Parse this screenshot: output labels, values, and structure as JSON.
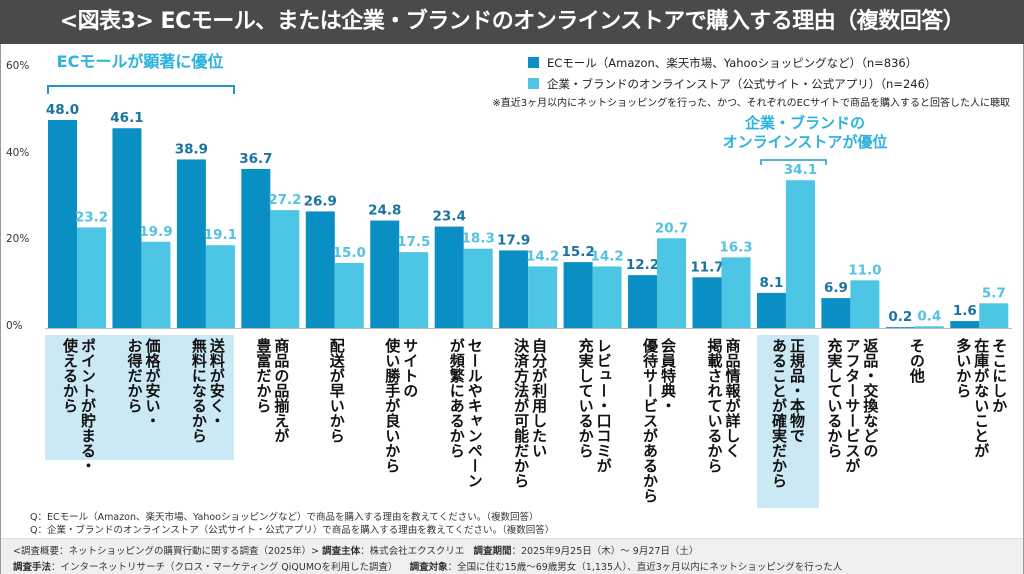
{
  "title": "<図表3> ECモール、または企業・ブランドのオンラインストアで購入する理由（複数回答）",
  "legend": [
    {
      "label": "ECモール（Amazon、楽天市場、Yahooショッピングなど）（n=836）",
      "color": "#0a8fc4"
    },
    {
      "label": "企業・ブランドのオンラインストア（公式サイト・公式アプリ）（n=246）",
      "color": "#4dc5e5"
    }
  ],
  "note": "※直近3ヶ月以内にネットショッピングを行った、かつ、それぞれのECサイトで商品を購入すると回答した人に聴取",
  "annotations": {
    "ec": "ECモールが顕著に優位",
    "brand_line1": "企業・ブランドの",
    "brand_line2": "オンラインストアが優位"
  },
  "questions": [
    "Q：ECモール（Amazon、楽天市場、Yahooショッピングなど）で商品を購入する理由を教えてください。（複数回答）",
    "Q：企業・ブランドのオンラインストア（公式サイト・公式アプリ）で商品を購入する理由を教えてください。（複数回答）"
  ],
  "footer": {
    "line1_prefix": "<調査概要：ネットショッピングの購買行動に関する調査（2025年）>",
    "sponsor_label": "調査主体",
    "sponsor": "：株式会社エクスクリエ",
    "period_label": "調査期間",
    "period": "：2025年9月25日（木）～ 9月27日（土）",
    "method_label": "調査手法",
    "method": "：インターネットリサーチ（クロス・マーケティング QiQUMOを利用した調査）",
    "target_label": "調査対象",
    "target": "：全国に住む15歳～69歳男女（1,135人）、直近3ヶ月以内にネットショッピングを行った人"
  },
  "chart_data": {
    "type": "bar",
    "ylim": [
      0,
      60
    ],
    "yticks": [
      "0%",
      "20%",
      "40%",
      "60%"
    ],
    "grid": false,
    "legend_position": "top-right",
    "categories": [
      "ポイントが貯まる・\n使えるから",
      "価格が安い・\nお得だから",
      "送料が安く・\n無料になるから",
      "商品の品揃えが\n豊富だから",
      "配送が早いから",
      "サイトの\n使い勝手が良いから",
      "セールやキャンペーン\nが頻繁にあるから",
      "自分が利用したい\n決済方法が可能だから",
      "レビュー・口コミが\n充実しているから",
      "会員特典・\n優待サービスがあるから",
      "商品情報が詳しく\n掲載されているから",
      "正規品・本物で\nあることが確実だから",
      "返品・交換などの\nアフターサービスが\n充実しているから",
      "その他",
      "そこにしか\n在庫がないことが\n多いから"
    ],
    "series": [
      {
        "name": "ECモール（Amazon、楽天市場、Yahooショッピングなど）（n=836）",
        "color": "#0a8fc4",
        "label_color": "#1b74a0",
        "values": [
          48.0,
          46.1,
          38.9,
          36.7,
          26.9,
          24.8,
          23.4,
          17.9,
          15.2,
          12.2,
          11.7,
          8.1,
          6.9,
          0.2,
          1.6
        ]
      },
      {
        "name": "企業・ブランドのオンラインストア（公式サイト・公式アプリ）（n=246）",
        "color": "#4dc5e5",
        "label_color": "#55c2e2",
        "values": [
          23.2,
          19.9,
          19.1,
          27.2,
          15.0,
          17.5,
          18.3,
          14.2,
          14.2,
          20.7,
          16.3,
          34.1,
          11.0,
          0.4,
          5.7
        ]
      }
    ],
    "highlighted_categories": [
      0,
      1,
      2,
      11
    ]
  }
}
